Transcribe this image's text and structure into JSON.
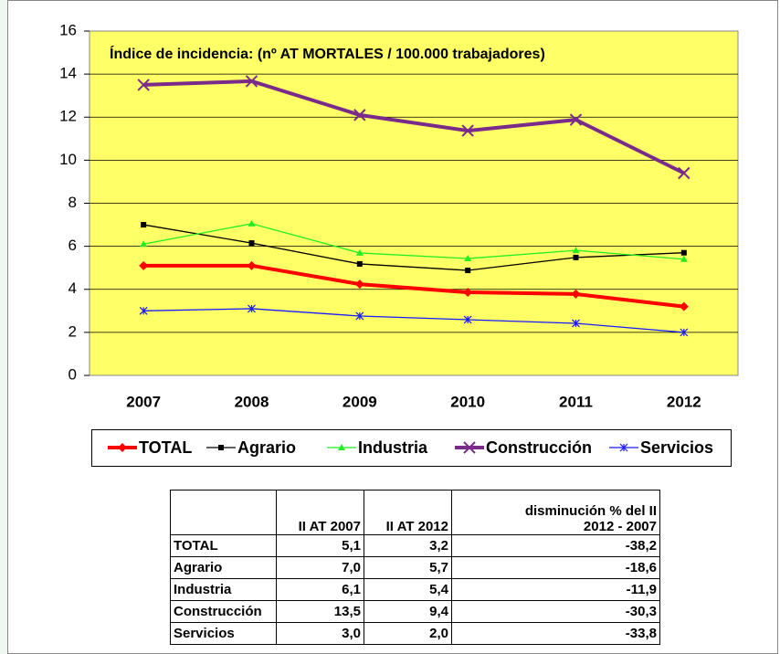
{
  "chart_data": {
    "type": "line",
    "annotation": "Índice de incidencia: (nº AT MORTALES / 100.000 trabajadores)",
    "categories": [
      "2007",
      "2008",
      "2009",
      "2010",
      "2011",
      "2012"
    ],
    "series": [
      {
        "name": "TOTAL",
        "color": "#ff0000",
        "marker": "diamond",
        "width": 4,
        "values": [
          5.1,
          5.1,
          4.24,
          3.86,
          3.78,
          3.2
        ]
      },
      {
        "name": "Agrario",
        "color": "#000000",
        "marker": "square",
        "width": 1.3,
        "values": [
          7.0,
          6.15,
          5.18,
          4.88,
          5.48,
          5.7
        ]
      },
      {
        "name": "Industria",
        "color": "#22ee22",
        "marker": "triangle",
        "width": 1.3,
        "values": [
          6.1,
          7.05,
          5.69,
          5.43,
          5.81,
          5.4
        ]
      },
      {
        "name": "Construcción",
        "color": "#7a2a8a",
        "marker": "x",
        "width": 4,
        "values": [
          13.5,
          13.67,
          12.1,
          11.37,
          11.88,
          9.4
        ]
      },
      {
        "name": "Servicios",
        "color": "#1a1aff",
        "marker": "asterisk",
        "width": 1.3,
        "values": [
          3.0,
          3.1,
          2.76,
          2.59,
          2.42,
          2.0
        ]
      }
    ],
    "ylim": [
      0,
      16
    ],
    "yticks": [
      0,
      2,
      4,
      6,
      8,
      10,
      12,
      14,
      16
    ],
    "grid": true,
    "plot_background": "#ffff66"
  },
  "table": {
    "columns": [
      "II AT 2007",
      "II AT 2012"
    ],
    "change_header": [
      "disminución % del II",
      "2012 - 2007"
    ],
    "rows": [
      [
        "TOTAL",
        "5,1",
        "3,2",
        "-38,2"
      ],
      [
        "Agrario",
        "7,0",
        "5,7",
        "-18,6"
      ],
      [
        "Industria",
        "6,1",
        "5,4",
        "-11,9"
      ],
      [
        "Construcción",
        "13,5",
        "9,4",
        "-30,3"
      ],
      [
        "Servicios",
        "3,0",
        "2,0",
        "-33,8"
      ]
    ]
  }
}
